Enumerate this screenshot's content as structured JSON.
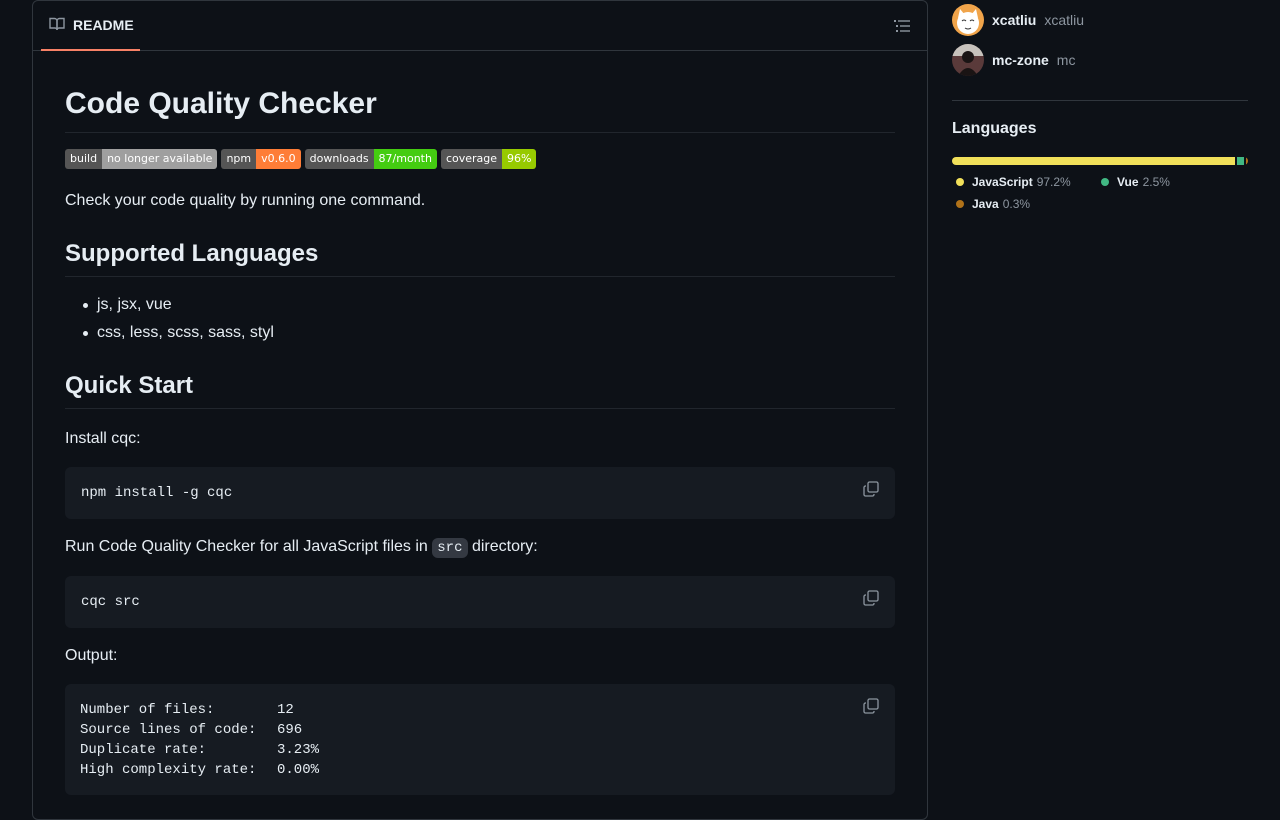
{
  "readme": {
    "tab_label": "README",
    "title": "Code Quality Checker",
    "badges": [
      {
        "key": "build",
        "value": "no longer available",
        "color": "#9f9f9f"
      },
      {
        "key": "npm",
        "value": "v0.6.0",
        "color": "#fe7d37"
      },
      {
        "key": "downloads",
        "value": "87/month",
        "color": "#4c1"
      },
      {
        "key": "coverage",
        "value": "96%",
        "color": "#97ca00"
      }
    ],
    "intro": "Check your code quality by running one command.",
    "supported_heading": "Supported Languages",
    "languages_list": [
      "js, jsx, vue",
      "css, less, scss, sass, styl"
    ],
    "quickstart_heading": "Quick Start",
    "install_text": "Install cqc:",
    "install_cmd": "npm install -g cqc",
    "run_text_before": "Run Code Quality Checker for all JavaScript files in",
    "run_text_code": "src",
    "run_text_after": "directory:",
    "run_cmd": "cqc src",
    "output_label": "Output:",
    "output_rows": [
      {
        "label": "Number of files:",
        "value": "12"
      },
      {
        "label": "Source lines of code:",
        "value": "696"
      },
      {
        "label": "Duplicate rate:",
        "value": "3.23%"
      },
      {
        "label": "High complexity rate:",
        "value": "0.00%"
      }
    ]
  },
  "sidebar": {
    "contributors": [
      {
        "login": "xcatliu",
        "name": "xcatliu"
      },
      {
        "login": "mc-zone",
        "name": "mc"
      }
    ],
    "languages_title": "Languages",
    "languages": [
      {
        "name": "JavaScript",
        "percent": "97.2%",
        "value": 97.2,
        "color": "#f1e05a"
      },
      {
        "name": "Vue",
        "percent": "2.5%",
        "value": 2.5,
        "color": "#41b883"
      },
      {
        "name": "Java",
        "percent": "0.3%",
        "value": 0.3,
        "color": "#b07219"
      }
    ]
  }
}
